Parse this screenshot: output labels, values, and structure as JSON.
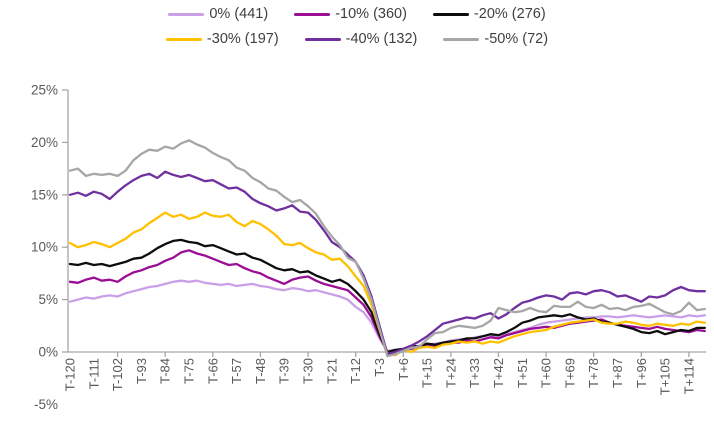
{
  "chart_data": {
    "type": "line",
    "title": "",
    "xlabel": "",
    "ylabel": "",
    "grid": false,
    "legend_position": "top",
    "x_axis": {
      "t_start": -120,
      "t_step": 3,
      "t_end": 120,
      "tick_labels": [
        "T-120",
        "T-111",
        "T-102",
        "T-93",
        "T-84",
        "T-75",
        "T-66",
        "T-57",
        "T-48",
        "T-39",
        "T-30",
        "T-21",
        "T-12",
        "T-3",
        "T+6",
        "T+15",
        "T+24",
        "T+33",
        "T+42",
        "T+51",
        "T+60",
        "T+69",
        "T+78",
        "T+87",
        "T+96",
        "T+105",
        "T+114"
      ],
      "tick_label_step": 9
    },
    "y_axis": {
      "min": -5,
      "max": 25,
      "tick_values": [
        25,
        20,
        15,
        10,
        5,
        0,
        -5
      ],
      "tick_labels": [
        "25%",
        "20%",
        "15%",
        "10%",
        "5%",
        "0%",
        "-5%"
      ],
      "unit": "%"
    },
    "axis_color": "#a6a6a6",
    "series": [
      {
        "name": "0% (441)",
        "color": "#c9a0e8",
        "values": [
          4.8,
          5.0,
          5.2,
          5.1,
          5.3,
          5.4,
          5.3,
          5.6,
          5.8,
          6.0,
          6.2,
          6.3,
          6.5,
          6.7,
          6.8,
          6.7,
          6.8,
          6.6,
          6.5,
          6.4,
          6.5,
          6.3,
          6.4,
          6.5,
          6.3,
          6.2,
          6.0,
          5.9,
          6.1,
          6.0,
          5.8,
          5.9,
          5.7,
          5.5,
          5.3,
          5.0,
          4.3,
          3.8,
          2.8,
          1.3,
          0.1,
          0.2,
          0.3,
          0.4,
          0.6,
          0.7,
          0.8,
          0.9,
          1.1,
          1.2,
          1.2,
          1.4,
          1.5,
          1.6,
          1.4,
          1.7,
          1.9,
          2.1,
          2.3,
          2.6,
          2.8,
          2.9,
          3.0,
          3.1,
          3.2,
          3.3,
          3.3,
          3.4,
          3.4,
          3.3,
          3.4,
          3.5,
          3.4,
          3.3,
          3.4,
          3.5,
          3.4,
          3.3,
          3.5,
          3.4,
          3.5
        ]
      },
      {
        "name": "-10% (360)",
        "color": "#9b0d94",
        "values": [
          6.7,
          6.6,
          6.9,
          7.1,
          6.8,
          6.9,
          6.7,
          7.2,
          7.6,
          7.8,
          8.1,
          8.3,
          8.7,
          9.0,
          9.5,
          9.7,
          9.4,
          9.2,
          8.9,
          8.6,
          8.3,
          8.4,
          8.0,
          7.7,
          7.5,
          7.1,
          6.8,
          6.5,
          6.9,
          7.1,
          7.2,
          6.8,
          6.5,
          6.3,
          6.1,
          5.9,
          5.2,
          4.5,
          3.3,
          1.5,
          0.0,
          0.1,
          0.2,
          0.3,
          0.5,
          0.6,
          0.6,
          0.8,
          0.9,
          0.9,
          1.1,
          1.0,
          1.2,
          1.4,
          1.3,
          1.6,
          1.8,
          2.0,
          2.2,
          2.3,
          2.4,
          2.3,
          2.5,
          2.7,
          2.8,
          2.9,
          3.0,
          3.1,
          2.8,
          2.6,
          2.5,
          2.4,
          2.3,
          2.2,
          2.4,
          2.2,
          2.1,
          2.0,
          1.9,
          2.1,
          2.0
        ]
      },
      {
        "name": "-20% (276)",
        "color": "#0d0d0d",
        "values": [
          8.4,
          8.3,
          8.5,
          8.3,
          8.4,
          8.2,
          8.4,
          8.6,
          8.9,
          9.0,
          9.4,
          9.9,
          10.3,
          10.6,
          10.7,
          10.5,
          10.4,
          10.1,
          10.2,
          9.9,
          9.6,
          9.3,
          9.4,
          9.0,
          8.8,
          8.4,
          8.0,
          7.8,
          7.9,
          7.6,
          7.7,
          7.3,
          7.0,
          6.7,
          6.9,
          6.5,
          5.8,
          5.0,
          3.8,
          1.7,
          0.0,
          0.2,
          0.3,
          0.6,
          0.5,
          0.8,
          0.7,
          0.9,
          1.0,
          1.1,
          1.3,
          1.3,
          1.5,
          1.7,
          1.6,
          1.9,
          2.3,
          2.8,
          3.0,
          3.3,
          3.4,
          3.5,
          3.4,
          3.6,
          3.3,
          3.1,
          3.2,
          2.9,
          2.8,
          2.6,
          2.4,
          2.2,
          1.9,
          1.8,
          2.0,
          1.7,
          1.9,
          2.1,
          2.0,
          2.3,
          2.3
        ]
      },
      {
        "name": "-30% (197)",
        "color": "#ffc000",
        "values": [
          10.4,
          10.0,
          10.2,
          10.5,
          10.3,
          10.0,
          10.4,
          10.8,
          11.4,
          11.7,
          12.3,
          12.8,
          13.3,
          12.9,
          13.1,
          12.7,
          12.9,
          13.3,
          13.0,
          12.9,
          13.1,
          12.4,
          12.0,
          12.5,
          12.2,
          11.7,
          11.1,
          10.3,
          10.2,
          10.4,
          9.9,
          9.5,
          9.3,
          8.8,
          8.9,
          8.2,
          7.2,
          6.3,
          4.5,
          2.1,
          -0.1,
          -0.3,
          0.2,
          0.0,
          0.4,
          0.5,
          0.4,
          0.7,
          0.8,
          1.0,
          0.9,
          1.0,
          0.8,
          1.0,
          0.9,
          1.2,
          1.5,
          1.7,
          1.9,
          2.0,
          2.1,
          2.4,
          2.6,
          2.8,
          2.9,
          3.0,
          3.1,
          2.8,
          2.7,
          2.7,
          2.9,
          2.8,
          2.6,
          2.5,
          2.7,
          2.6,
          2.5,
          2.7,
          2.6,
          2.9,
          2.8
        ]
      },
      {
        "name": "-40% (132)",
        "color": "#7030a0",
        "values": [
          15.0,
          15.2,
          14.9,
          15.3,
          15.1,
          14.6,
          15.3,
          15.9,
          16.4,
          16.8,
          17.0,
          16.6,
          17.2,
          16.9,
          16.7,
          16.9,
          16.6,
          16.3,
          16.4,
          16.0,
          15.6,
          15.7,
          15.3,
          14.6,
          14.2,
          13.9,
          13.5,
          13.7,
          14.0,
          13.4,
          13.3,
          12.6,
          11.6,
          10.5,
          10.0,
          9.3,
          8.6,
          7.3,
          5.3,
          2.5,
          -0.2,
          0.0,
          0.3,
          0.6,
          1.0,
          1.5,
          2.1,
          2.7,
          2.9,
          3.1,
          3.3,
          3.2,
          3.5,
          3.7,
          3.2,
          3.6,
          4.2,
          4.7,
          4.9,
          5.2,
          5.4,
          5.3,
          5.0,
          5.6,
          5.7,
          5.5,
          5.8,
          5.9,
          5.7,
          5.3,
          5.4,
          5.1,
          4.8,
          5.3,
          5.2,
          5.4,
          5.9,
          6.2,
          5.9,
          5.8,
          5.8
        ]
      },
      {
        "name": "-50% (72)",
        "color": "#a6a6a6",
        "values": [
          17.3,
          17.5,
          16.8,
          17.0,
          16.9,
          17.0,
          16.8,
          17.3,
          18.3,
          18.9,
          19.3,
          19.2,
          19.6,
          19.4,
          19.9,
          20.2,
          19.8,
          19.5,
          19.0,
          18.6,
          18.3,
          17.6,
          17.3,
          16.6,
          16.2,
          15.6,
          15.4,
          14.8,
          14.3,
          14.5,
          13.9,
          13.2,
          12.0,
          11.0,
          10.2,
          9.0,
          8.6,
          7.0,
          5.0,
          2.2,
          -0.4,
          -0.2,
          0.1,
          0.4,
          0.5,
          1.2,
          1.8,
          1.9,
          2.3,
          2.5,
          2.4,
          2.3,
          2.5,
          3.0,
          4.2,
          4.0,
          3.8,
          3.9,
          4.2,
          3.9,
          3.8,
          4.4,
          4.3,
          4.3,
          4.8,
          4.3,
          4.2,
          4.5,
          4.1,
          4.2,
          4.0,
          4.3,
          4.4,
          4.6,
          4.2,
          3.8,
          3.6,
          3.9,
          4.7,
          4.0,
          4.1
        ]
      }
    ]
  },
  "legend": {
    "rows": [
      [
        0,
        1,
        2
      ],
      [
        3,
        4,
        5
      ]
    ]
  }
}
